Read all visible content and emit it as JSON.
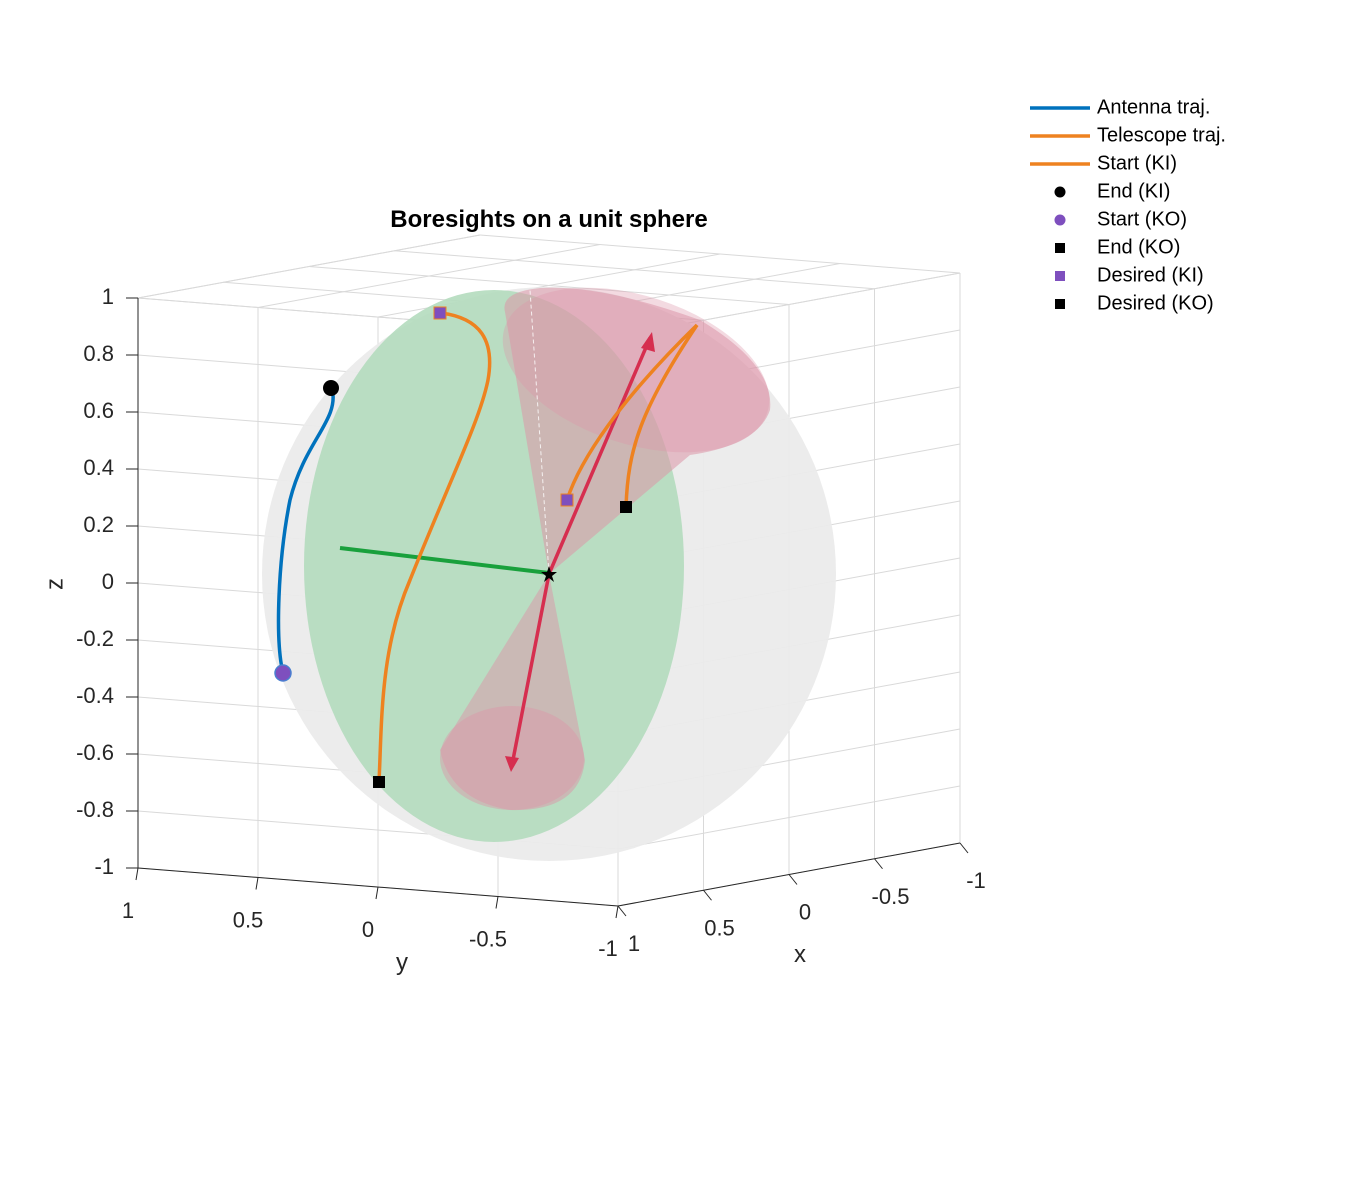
{
  "chart_data": {
    "type": "scatter",
    "title": "Boresights on a unit sphere",
    "xlabel": "x",
    "ylabel": "y",
    "zlabel": "z",
    "xlim": [
      -1,
      1
    ],
    "ylim": [
      -1,
      1
    ],
    "zlim": [
      -1,
      1
    ],
    "x_ticks": [
      "1",
      "0.5",
      "0",
      "-0.5",
      "-1"
    ],
    "y_ticks": [
      "1",
      "0.5",
      "0",
      "-0.5",
      "-1"
    ],
    "z_ticks": [
      "1",
      "0.8",
      "0.6",
      "0.4",
      "0.2",
      "0",
      "-0.2",
      "-0.4",
      "-0.6",
      "-0.8",
      "-1"
    ],
    "grid": true,
    "legend_position": "top-right",
    "legend": [
      {
        "label": "Antenna traj.",
        "kind": "line",
        "color": "#0072BD"
      },
      {
        "label": "Telescope traj.",
        "kind": "line",
        "color": "#EE8220"
      },
      {
        "label": "Start (KI)",
        "kind": "line",
        "color": "#EE8220"
      },
      {
        "label": "End (KI)",
        "kind": "circle",
        "color": "#000000"
      },
      {
        "label": "Start (KO)",
        "kind": "circle",
        "color": "#7E4FBE"
      },
      {
        "label": "End (KO)",
        "kind": "square",
        "color": "#000000"
      },
      {
        "label": "Desired (KI)",
        "kind": "square",
        "color": "#7E4FBE"
      },
      {
        "label": "Desired (KO)",
        "kind": "square",
        "color": "#000000"
      }
    ],
    "colors": {
      "sphere": "#ebebeb",
      "plane": "#b4dcbe",
      "cone": "#dc96a8",
      "antenna": "#0072BD",
      "telescope": "#EE8220",
      "boresight_arrow": "#D62E4F",
      "axis_arrow": "#19A03C"
    },
    "series": [
      {
        "name": "Antenna traj.",
        "points_yz": [
          [
            0.35,
            -0.31
          ],
          [
            0.39,
            -0.25
          ],
          [
            0.38,
            0.0
          ],
          [
            0.3,
            0.38
          ],
          [
            0.22,
            0.6
          ],
          [
            0.18,
            0.69
          ]
        ]
      },
      {
        "name": "Telescope traj.",
        "points_yz": [
          [
            0.0,
            -0.7
          ],
          [
            0.02,
            -0.35
          ],
          [
            0.1,
            0.0
          ],
          [
            0.2,
            0.3
          ],
          [
            0.25,
            0.7
          ],
          [
            0.25,
            0.95
          ]
        ]
      },
      {
        "name": "Start (KI)",
        "points_yz": [
          [
            -0.45,
            0.3
          ],
          [
            -0.55,
            0.52
          ],
          [
            -0.78,
            0.73
          ]
        ]
      },
      {
        "name": "Start (KO)",
        "points_yz": [
          [
            -0.62,
            0.27
          ],
          [
            -0.64,
            0.6
          ],
          [
            -0.8,
            0.73
          ]
        ]
      }
    ]
  }
}
